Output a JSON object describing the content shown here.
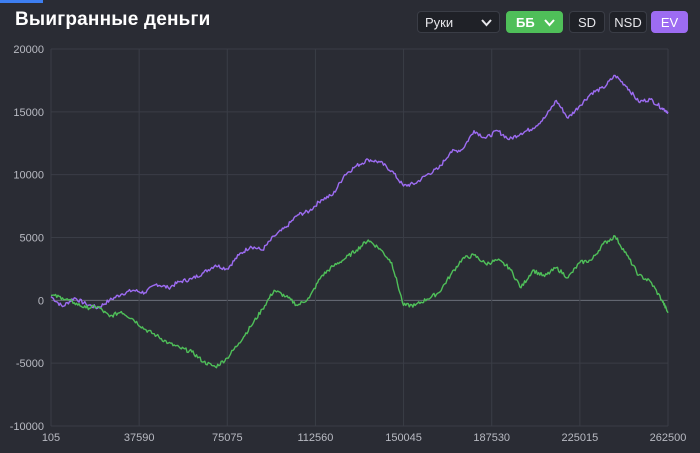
{
  "header": {
    "title": "Выигранные деньги",
    "rounds_dropdown": "Руки",
    "unit_dropdown": "ББ",
    "btn_sd": "SD",
    "btn_nsd": "NSD",
    "btn_ev": "EV"
  },
  "colors": {
    "background": "#2a2c34",
    "ev_line": "#9d6cf2",
    "won_line": "#4fbf59",
    "grid": "#3a3d46",
    "zero_line": "#6b6e78"
  },
  "chart_data": {
    "type": "line",
    "xlim": [
      105,
      262500
    ],
    "ylim": [
      -10000,
      20000
    ],
    "x_ticks": [
      "105",
      "37590",
      "75075",
      "112560",
      "150045",
      "187530",
      "225015",
      "262500"
    ],
    "y_ticks": [
      "20000",
      "15000",
      "10000",
      "5000",
      "0",
      "-5000",
      "-10000"
    ],
    "grid": true,
    "series": [
      {
        "color": "#9d6cf2",
        "points": [
          [
            105,
            300
          ],
          [
            5000,
            -500
          ],
          [
            10000,
            200
          ],
          [
            15000,
            -300
          ],
          [
            20000,
            -600
          ],
          [
            25000,
            0
          ],
          [
            30000,
            500
          ],
          [
            35000,
            800
          ],
          [
            40000,
            600
          ],
          [
            45000,
            1300
          ],
          [
            50000,
            1000
          ],
          [
            55000,
            1500
          ],
          [
            60000,
            1700
          ],
          [
            65000,
            2200
          ],
          [
            70000,
            2800
          ],
          [
            75000,
            2500
          ],
          [
            80000,
            3600
          ],
          [
            85000,
            4300
          ],
          [
            90000,
            4000
          ],
          [
            95000,
            5100
          ],
          [
            100000,
            5800
          ],
          [
            105000,
            6800
          ],
          [
            110000,
            7100
          ],
          [
            115000,
            8000
          ],
          [
            120000,
            8400
          ],
          [
            125000,
            10000
          ],
          [
            130000,
            10700
          ],
          [
            135000,
            11200
          ],
          [
            140000,
            11000
          ],
          [
            145000,
            10300
          ],
          [
            150000,
            9100
          ],
          [
            155000,
            9300
          ],
          [
            160000,
            10000
          ],
          [
            165000,
            10500
          ],
          [
            170000,
            11800
          ],
          [
            175000,
            12000
          ],
          [
            180000,
            13500
          ],
          [
            185000,
            12900
          ],
          [
            190000,
            13500
          ],
          [
            195000,
            12800
          ],
          [
            200000,
            13300
          ],
          [
            205000,
            13700
          ],
          [
            210000,
            14500
          ],
          [
            215000,
            15900
          ],
          [
            220000,
            14500
          ],
          [
            225000,
            15500
          ],
          [
            230000,
            16500
          ],
          [
            235000,
            16900
          ],
          [
            240000,
            17900
          ],
          [
            245000,
            17000
          ],
          [
            250000,
            15800
          ],
          [
            255000,
            16000
          ],
          [
            260000,
            15300
          ],
          [
            262500,
            15000
          ]
        ]
      },
      {
        "color": "#4fbf59",
        "points": [
          [
            105,
            400
          ],
          [
            5000,
            200
          ],
          [
            10000,
            -200
          ],
          [
            15000,
            -600
          ],
          [
            20000,
            -500
          ],
          [
            25000,
            -1300
          ],
          [
            30000,
            -900
          ],
          [
            35000,
            -1500
          ],
          [
            40000,
            -2300
          ],
          [
            45000,
            -2800
          ],
          [
            50000,
            -3400
          ],
          [
            55000,
            -3800
          ],
          [
            60000,
            -4100
          ],
          [
            65000,
            -4900
          ],
          [
            70000,
            -5300
          ],
          [
            75000,
            -4600
          ],
          [
            80000,
            -3400
          ],
          [
            85000,
            -2100
          ],
          [
            90000,
            -700
          ],
          [
            95000,
            800
          ],
          [
            100000,
            300
          ],
          [
            105000,
            -400
          ],
          [
            110000,
            200
          ],
          [
            115000,
            1900
          ],
          [
            120000,
            2700
          ],
          [
            125000,
            3300
          ],
          [
            130000,
            4000
          ],
          [
            135000,
            4800
          ],
          [
            140000,
            4100
          ],
          [
            145000,
            3000
          ],
          [
            150000,
            -400
          ],
          [
            155000,
            -400
          ],
          [
            160000,
            100
          ],
          [
            165000,
            600
          ],
          [
            170000,
            2000
          ],
          [
            175000,
            3300
          ],
          [
            180000,
            3600
          ],
          [
            185000,
            2900
          ],
          [
            190000,
            3200
          ],
          [
            195000,
            2600
          ],
          [
            200000,
            1000
          ],
          [
            205000,
            2400
          ],
          [
            210000,
            1900
          ],
          [
            215000,
            2600
          ],
          [
            220000,
            1800
          ],
          [
            225000,
            3000
          ],
          [
            230000,
            3200
          ],
          [
            235000,
            4500
          ],
          [
            240000,
            5100
          ],
          [
            245000,
            3600
          ],
          [
            250000,
            2000
          ],
          [
            255000,
            1500
          ],
          [
            260000,
            0
          ],
          [
            262500,
            -1000
          ]
        ]
      }
    ]
  }
}
